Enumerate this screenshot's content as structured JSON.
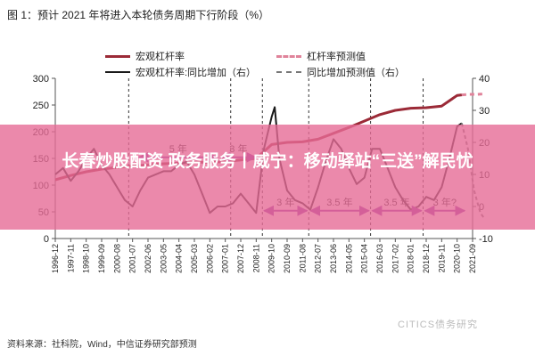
{
  "figure": {
    "title": "图 1：预计 2021 年将进入本轮债务周期下行阶段（%）",
    "source": "资料来源：社科院，Wind，中信证券研究部预测",
    "watermark": "CITICS债务研究",
    "banner_text": "长春炒股配资 政务服务丨威宁：移动驿站“三送”解民忧"
  },
  "colors": {
    "leverage": "#9b2a37",
    "yoy": "#1a1a1a",
    "leverage_forecast": "#e0839a",
    "yoy_forecast": "#777777",
    "period_arrows": "#8c2ea3",
    "banner": "#e66c96"
  },
  "chart_data": {
    "type": "line",
    "title": "预计 2021 年将进入本轮债务周期下行阶段（%）",
    "x_ticks": [
      "1996-12",
      "1997-11",
      "1998-10",
      "1999-09",
      "2000-08",
      "2001-07",
      "2002-06",
      "2003-05",
      "2004-04",
      "2005-03",
      "2006-02",
      "2007-01",
      "2007-12",
      "2008-11",
      "2009-10",
      "2010-09",
      "2011-08",
      "2012-07",
      "2013-06",
      "2014-05",
      "2015-04",
      "2016-03",
      "2017-02",
      "2018-01",
      "2018-12",
      "2019-11",
      "2020-10",
      "2021-09"
    ],
    "y_left": {
      "ticks": [
        0,
        50,
        100,
        150,
        200,
        250,
        300
      ],
      "range": [
        0,
        300
      ]
    },
    "y_right": {
      "ticks": [
        -10,
        0,
        10,
        20,
        30,
        40
      ],
      "range": [
        -10,
        40
      ]
    },
    "legend": [
      "宏观杠杆率",
      "宏观杠杆率:同比增加（右）",
      "杠杆率预测值",
      "同比增加预测值（右）"
    ],
    "series": [
      {
        "name": "宏观杠杆率",
        "axis": "left",
        "style": "solid",
        "points": [
          [
            0,
            110
          ],
          [
            1,
            118
          ],
          [
            2,
            125
          ],
          [
            3,
            130
          ],
          [
            4,
            133
          ],
          [
            5,
            136
          ],
          [
            6,
            138
          ],
          [
            7,
            140
          ],
          [
            8,
            141
          ],
          [
            9,
            143
          ],
          [
            10,
            143
          ],
          [
            11,
            144
          ],
          [
            12,
            147
          ],
          [
            13,
            150
          ],
          [
            14,
            176
          ],
          [
            15,
            180
          ],
          [
            16,
            181
          ],
          [
            17,
            186
          ],
          [
            18,
            197
          ],
          [
            19,
            208
          ],
          [
            20,
            220
          ],
          [
            21,
            232
          ],
          [
            22,
            240
          ],
          [
            23,
            244
          ],
          [
            24,
            245
          ],
          [
            25,
            248
          ],
          [
            26,
            268
          ],
          [
            26.3,
            269
          ]
        ]
      },
      {
        "name": "杠杆率预测值",
        "axis": "left",
        "style": "dashed",
        "points": [
          [
            26.3,
            269
          ],
          [
            26.8,
            270
          ],
          [
            27.3,
            270
          ],
          [
            27.8,
            271
          ]
        ]
      },
      {
        "name": "宏观杠杆率:同比增加（右）",
        "axis": "right",
        "style": "solid",
        "points": [
          [
            0,
            10
          ],
          [
            0.5,
            12
          ],
          [
            1,
            8
          ],
          [
            1.5,
            11
          ],
          [
            2,
            15
          ],
          [
            2.5,
            18
          ],
          [
            3,
            13
          ],
          [
            3.5,
            10
          ],
          [
            4,
            6
          ],
          [
            4.5,
            2
          ],
          [
            5,
            0
          ],
          [
            5.5,
            5
          ],
          [
            6,
            9
          ],
          [
            7,
            11
          ],
          [
            7.5,
            11
          ],
          [
            8,
            13
          ],
          [
            8.5,
            14
          ],
          [
            9,
            10
          ],
          [
            9.5,
            4
          ],
          [
            10,
            -2
          ],
          [
            10.5,
            0
          ],
          [
            11,
            0
          ],
          [
            11.5,
            1
          ],
          [
            12,
            4
          ],
          [
            12.5,
            1
          ],
          [
            13,
            -2
          ],
          [
            13.5,
            18
          ],
          [
            14,
            28
          ],
          [
            14.2,
            31
          ],
          [
            14.5,
            15
          ],
          [
            15,
            5
          ],
          [
            15.5,
            2
          ],
          [
            16,
            1
          ],
          [
            16.5,
            -1
          ],
          [
            17,
            6
          ],
          [
            17.5,
            14
          ],
          [
            18,
            21
          ],
          [
            18.5,
            18
          ],
          [
            19,
            12
          ],
          [
            19.5,
            7
          ],
          [
            20,
            9
          ],
          [
            20.5,
            18
          ],
          [
            21,
            18
          ],
          [
            21.5,
            12
          ],
          [
            22,
            6
          ],
          [
            22.5,
            2
          ],
          [
            23,
            -1
          ],
          [
            23.5,
            0
          ],
          [
            24,
            3
          ],
          [
            24.5,
            2
          ],
          [
            25,
            6
          ],
          [
            25.5,
            15
          ],
          [
            26,
            25
          ],
          [
            26.3,
            26
          ]
        ]
      },
      {
        "name": "同比增加预测值（右）",
        "axis": "right",
        "style": "dashed",
        "points": [
          [
            26.3,
            26
          ],
          [
            26.7,
            18
          ],
          [
            27.1,
            5
          ],
          [
            27.5,
            -2
          ],
          [
            27.8,
            -4
          ]
        ]
      }
    ],
    "vlines": [
      4.75,
      11.35,
      13.4,
      16.4,
      20.4,
      23.8
    ],
    "annotations": [
      {
        "label": "5 年",
        "from": 5.3,
        "to": 10.6,
        "y": 152,
        "axis": "left"
      },
      {
        "label": "3 年",
        "from": 10.6,
        "to": 13.1,
        "y": 152,
        "axis": "left"
      },
      {
        "label": "3 年",
        "from": 13.4,
        "to": 16.4,
        "y": 52,
        "axis": "left"
      },
      {
        "label": "3.5 年",
        "from": 16.4,
        "to": 20.4,
        "y": 52,
        "axis": "left"
      },
      {
        "label": "3.5 年",
        "from": 20.4,
        "to": 23.8,
        "y": 52,
        "axis": "left"
      },
      {
        "label": "3 年?",
        "from": 23.8,
        "to": 26.6,
        "y": 52,
        "axis": "left"
      }
    ],
    "grid": false,
    "legend_position": "top"
  }
}
